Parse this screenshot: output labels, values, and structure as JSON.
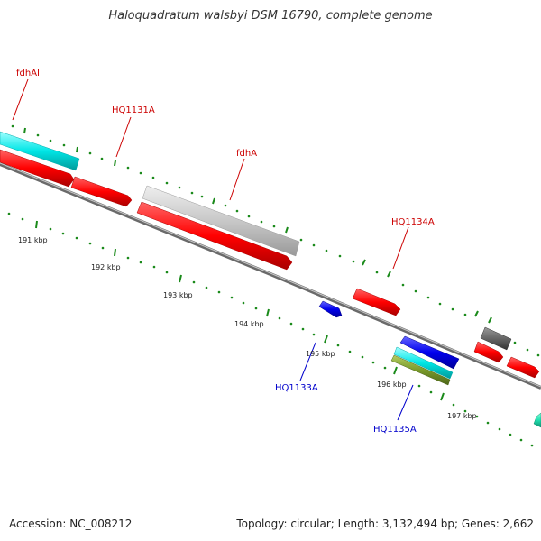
{
  "title": "Haloquadratum walsbyi DSM 16790, complete genome",
  "footer": {
    "accession": "Accession: NC_008212",
    "summary": "Topology: circular; Length: 3,132,494 bp; Genes: 2,662"
  },
  "colors": {
    "red": "#ff0000",
    "cyan": "#00e6e6",
    "blue": "#0000ee",
    "gray": "#c8c8c8",
    "darkgray": "#666666",
    "olive": "#7a9a2a",
    "teal": "#20e0b0",
    "tick": "#1a8a1a",
    "forward_label": "#cc0000",
    "reverse_label": "#0000cc"
  },
  "scale_labels": [
    "191 kbp",
    "192 kbp",
    "193 kbp",
    "194 kbp",
    "195 kbp",
    "196 kbp",
    "197 kbp"
  ],
  "gene_labels": {
    "fdhAII": "fdhAII",
    "HQ1131A": "HQ1131A",
    "fdhA": "fdhA",
    "HQ1134A": "HQ1134A",
    "HQ1133A": "HQ1133A",
    "HQ1135A": "HQ1135A"
  }
}
